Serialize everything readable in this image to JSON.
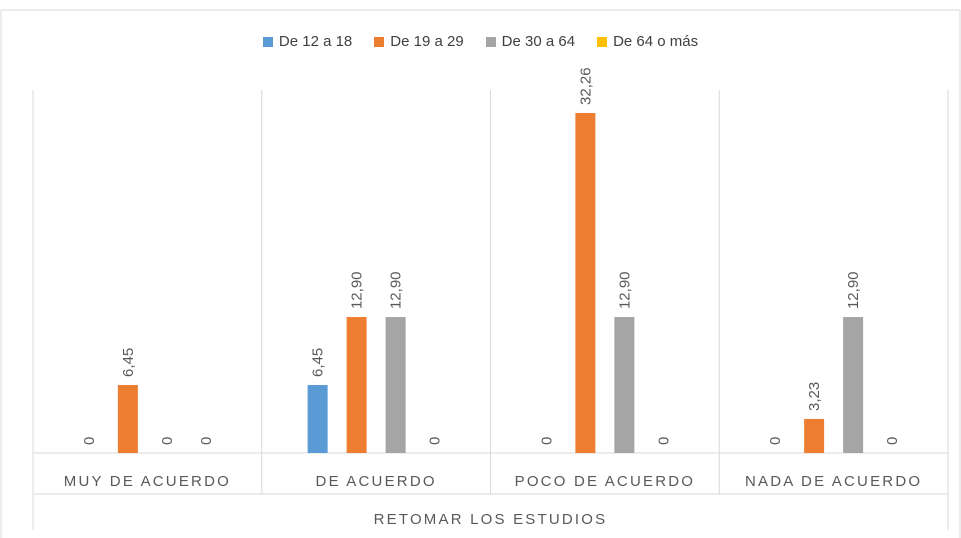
{
  "chart_data": {
    "type": "bar",
    "title": "",
    "xlabel": "RETOMAR LOS ESTUDIOS",
    "ylabel": "",
    "categories": [
      "MUY DE ACUERDO",
      "DE ACUERDO",
      "POCO DE ACUERDO",
      "NADA DE ACUERDO"
    ],
    "series": [
      {
        "name": "De 12 a 18",
        "color": "#5b9bd5",
        "values": [
          0,
          6.45,
          0,
          0
        ],
        "labels": [
          "0",
          "6,45",
          "0",
          "0"
        ]
      },
      {
        "name": "De 19 a 29",
        "color": "#ed7d31",
        "values": [
          6.45,
          12.9,
          32.26,
          3.23
        ],
        "labels": [
          "6,45",
          "12,90",
          "32,26",
          "3,23"
        ]
      },
      {
        "name": "De 30 a 64",
        "color": "#a5a5a5",
        "values": [
          0,
          12.9,
          12.9,
          12.9
        ],
        "labels": [
          "0",
          "12,90",
          "12,90",
          "12,90"
        ]
      },
      {
        "name": "De 64 o más",
        "color": "#ffc000",
        "values": [
          0,
          0,
          0,
          0
        ],
        "labels": [
          "0",
          "0",
          "0",
          "0"
        ]
      }
    ],
    "ylim": [
      0,
      35
    ],
    "legend": "top",
    "grid": false
  }
}
